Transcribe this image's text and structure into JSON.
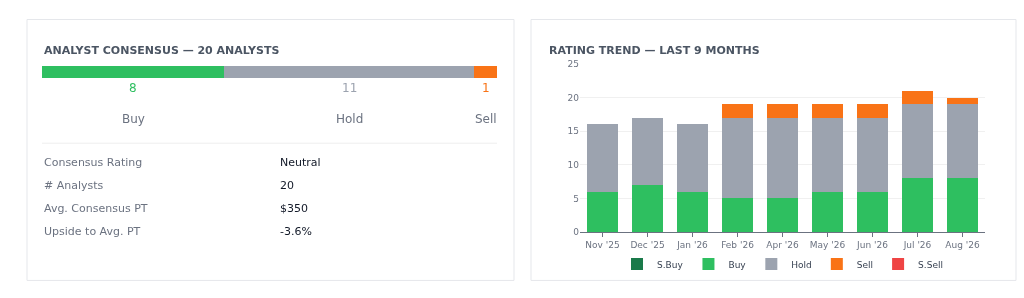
{
  "chart_data": [
    {
      "type": "bar",
      "title": "ANALYST CONSENSUS — 20 ANALYSTS",
      "orientation": "horizontal",
      "stacked": true,
      "categories": [
        null
      ],
      "tick_labels": false,
      "data_labels": true,
      "legend": false,
      "series": [
        {
          "name": "Buy",
          "color": "#2ebf60",
          "values": [
            8
          ]
        },
        {
          "name": "Hold",
          "color": "#9ca3af",
          "values": [
            11
          ]
        },
        {
          "name": "Sell",
          "color": "#f97316",
          "values": [
            1
          ]
        }
      ],
      "annotations": [
        "Consensus Rating",
        "Neutral",
        "# Analysts",
        "20",
        "Avg. Consensus PT",
        "$350",
        "Upside to Avg. PT",
        "-3.6%"
      ]
    },
    {
      "type": "bar",
      "title": "RATING TREND — LAST 9 MONTHS",
      "stacked": true,
      "categories": [
        "Nov '25",
        "Dec '25",
        "Jan '26",
        "Feb '26",
        "Apr '26",
        "May '26",
        "Jun '26",
        "Jul '26",
        "Aug '26"
      ],
      "ylim": [
        0,
        25
      ],
      "yticks": [
        0,
        5,
        10,
        15,
        20,
        25
      ],
      "grid": "y",
      "legend": "bottom",
      "series": [
        {
          "name": "S.Buy",
          "color": "#1a7a4a",
          "values": [
            0,
            0,
            0,
            0,
            0,
            0,
            0,
            0,
            0
          ]
        },
        {
          "name": "Buy",
          "color": "#2ebf60",
          "values": [
            6,
            7,
            6,
            5,
            5,
            6,
            6,
            8,
            8
          ]
        },
        {
          "name": "Hold",
          "color": "#9ca3af",
          "values": [
            10,
            10,
            10,
            12,
            12,
            11,
            11,
            11,
            11
          ]
        },
        {
          "name": "Sell",
          "color": "#f97316",
          "values": [
            0,
            0,
            0,
            2,
            2,
            2,
            2,
            2,
            1
          ]
        },
        {
          "name": "S.Sell",
          "color": "#ef4444",
          "values": [
            0,
            0,
            0,
            0,
            0,
            0,
            0,
            0,
            0
          ]
        }
      ]
    }
  ]
}
